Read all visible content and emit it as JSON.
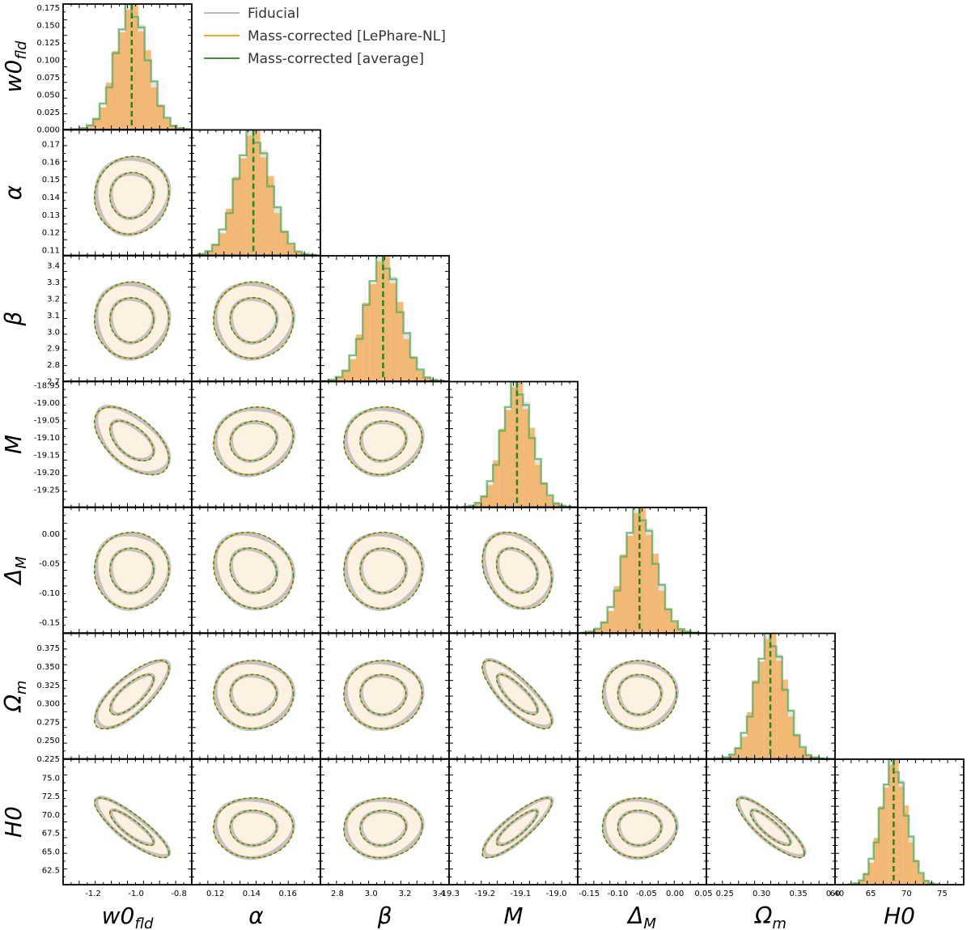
{
  "chart_data": {
    "type": "corner",
    "parameters": [
      {
        "key": "w0",
        "label": "w0",
        "sub": "fld",
        "lim": [
          -1.34,
          -0.74
        ],
        "ticks": [
          "-1.2",
          "-1.0",
          "-0.8"
        ],
        "tickvals": [
          -1.2,
          -1.0,
          -0.8
        ],
        "mean": -1.02,
        "sd": 0.075,
        "peak": 0.178
      },
      {
        "key": "alpha",
        "label": "α",
        "sub": "",
        "lim": [
          0.107,
          0.178
        ],
        "ticks": [
          "0.12",
          "0.14",
          "0.16"
        ],
        "tickvals": [
          0.12,
          0.14,
          0.16
        ],
        "mean": 0.141,
        "sd": 0.0095,
        "peak": 0.17
      },
      {
        "key": "beta",
        "label": "β",
        "sub": "",
        "lim": [
          2.7,
          3.46
        ],
        "ticks": [
          "2.8",
          "3.0",
          "3.2",
          "3.4"
        ],
        "tickvals": [
          2.8,
          3.0,
          3.2,
          3.4
        ],
        "mean": 3.07,
        "sd": 0.1,
        "peak": 3.42
      },
      {
        "key": "M",
        "label": "M",
        "sub": "",
        "lim": [
          -19.3,
          -18.94
        ],
        "ticks": [
          "-19.3",
          "-19.2",
          "-19.1",
          "-19.0"
        ],
        "tickvals": [
          -19.3,
          -19.2,
          -19.1,
          -19.0
        ],
        "mean": -19.11,
        "sd": 0.042,
        "peak": -18.955
      },
      {
        "key": "dM",
        "label": "Δ",
        "sub": "M",
        "lim": [
          -0.17,
          0.055
        ],
        "ticks": [
          "-0.15",
          "-0.10",
          "-0.05",
          "0.00",
          "0.05"
        ],
        "tickvals": [
          -0.15,
          -0.1,
          -0.05,
          0.0,
          0.05
        ],
        "mean": -0.062,
        "sd": 0.028,
        "peak": 0.035
      },
      {
        "key": "Om",
        "label": "Ω",
        "sub": "m",
        "lim": [
          0.225,
          0.4
        ],
        "ticks": [
          "0.25",
          "0.30",
          "0.35",
          "0.40"
        ],
        "tickvals": [
          0.25,
          0.3,
          0.35,
          0.4
        ],
        "mean": 0.312,
        "sd": 0.02,
        "peak": 0.39
      },
      {
        "key": "H0",
        "label": "H0",
        "sub": "",
        "lim": [
          60,
          78
        ],
        "ticks": [
          "60",
          "65",
          "70",
          "75"
        ],
        "tickvals": [
          60,
          65,
          70,
          75
        ],
        "mean": 68.2,
        "sd": 1.75,
        "peak": 77
      }
    ],
    "y_tick_labels": {
      "w0": [
        "0.000",
        "0.025",
        "0.050",
        "0.075",
        "0.100",
        "0.125",
        "0.150",
        "0.175"
      ],
      "w0_vals": [
        0.0,
        0.025,
        0.05,
        0.075,
        0.1,
        0.125,
        0.15,
        0.175
      ],
      "w0_lim": [
        0.0,
        0.18
      ],
      "alpha": [
        "0.11",
        "0.12",
        "0.13",
        "0.14",
        "0.15",
        "0.16",
        "0.17"
      ],
      "alpha_vals": [
        0.11,
        0.12,
        0.13,
        0.14,
        0.15,
        0.16,
        0.17
      ],
      "beta": [
        "2.7",
        "2.8",
        "2.9",
        "3.0",
        "3.1",
        "3.2",
        "3.3",
        "3.4"
      ],
      "beta_vals": [
        2.7,
        2.8,
        2.9,
        3.0,
        3.1,
        3.2,
        3.3,
        3.4
      ],
      "M": [
        "-19.25",
        "-19.20",
        "-19.15",
        "-19.10",
        "-19.05",
        "-19.00",
        "-18.95"
      ],
      "M_vals": [
        -19.25,
        -19.2,
        -19.15,
        -19.1,
        -19.05,
        -19.0,
        -18.95
      ],
      "dM": [
        "-0.15",
        "-0.10",
        "-0.05",
        "0.00"
      ],
      "dM_vals": [
        -0.15,
        -0.1,
        -0.05,
        0.0
      ],
      "dM_lim": [
        -0.168,
        0.045
      ],
      "Om": [
        "0.225",
        "0.250",
        "0.275",
        "0.300",
        "0.325",
        "0.350",
        "0.375"
      ],
      "Om_vals": [
        0.225,
        0.25,
        0.275,
        0.3,
        0.325,
        0.35,
        0.375
      ],
      "Om_lim": [
        0.225,
        0.395
      ],
      "H0": [
        "62.5",
        "65.0",
        "67.5",
        "70.0",
        "72.5",
        "75.0"
      ],
      "H0_vals": [
        62.5,
        65.0,
        67.5,
        70.0,
        72.5,
        75.0
      ],
      "H0_lim": [
        60.5,
        77.5
      ]
    },
    "correlations": {
      "w0-alpha": 0.05,
      "w0-beta": 0.0,
      "w0-M": -0.55,
      "w0-dM": 0.0,
      "w0-Om": 0.75,
      "w0-H0": -0.85,
      "alpha-beta": 0.0,
      "alpha-M": 0.1,
      "alpha-dM": -0.15,
      "alpha-Om": 0.0,
      "alpha-H0": 0.0,
      "beta-M": 0.05,
      "beta-dM": 0.0,
      "beta-Om": 0.0,
      "beta-H0": 0.05,
      "M-dM": -0.25,
      "M-Om": -0.8,
      "M-H0": 0.85,
      "dM-Om": 0.0,
      "dM-H0": 0.0,
      "Om-H0": -0.85
    },
    "legend": {
      "placement": "upper-center",
      "entries": [
        {
          "name": "Fiducial",
          "color": "#bdbdbd"
        },
        {
          "name": "Mass-corrected [LePhare-NL]",
          "color": "#f5a623"
        },
        {
          "name": "Mass-corrected [average]",
          "color": "#3a9a3a"
        }
      ]
    },
    "series_colors": {
      "fiducial": "#bdbdbd",
      "lephare": "#f0a040",
      "average": "#2e8b2e",
      "fill": "#fdf1e2"
    }
  }
}
